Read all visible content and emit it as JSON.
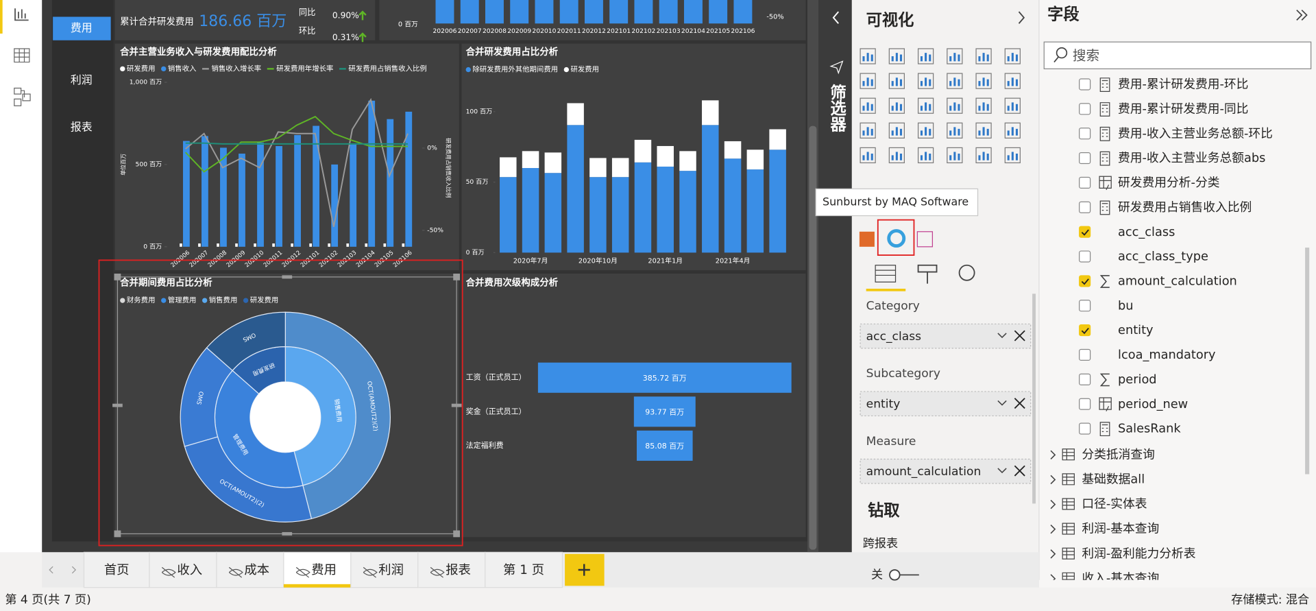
{
  "left_nav": {
    "pages": [
      "费用",
      "利润",
      "报表"
    ],
    "active": 0
  },
  "kpi": {
    "label": "累计合并研发费用",
    "value": "186.66 百万",
    "yoy_label": "同比",
    "yoy": "0.90%",
    "mom_label": "环比",
    "mom": "0.31%"
  },
  "top_chart": {
    "categories": [
      "202006",
      "202007",
      "202008",
      "202009",
      "202010",
      "202011",
      "202012",
      "202101",
      "202102",
      "202103",
      "202104",
      "202105",
      "202106"
    ],
    "y_label": "0 百万",
    "y2_label": "-50%"
  },
  "chart_data": [
    {
      "type": "combo",
      "title": "合并主营业务收入与研发费用配比分析",
      "categories": [
        "202006",
        "202007",
        "202008",
        "202009",
        "202010",
        "202011",
        "202012",
        "202101",
        "202102",
        "202103",
        "202104",
        "202105",
        "202106"
      ],
      "series": [
        {
          "name": "研发费用",
          "kind": "bar",
          "color": "#ffffff",
          "values": [
            20,
            20,
            20,
            20,
            20,
            20,
            20,
            20,
            20,
            20,
            20,
            20,
            20
          ]
        },
        {
          "name": "销售收入",
          "kind": "bar",
          "color": "#3a8ee6",
          "values": [
            643,
            673,
            602,
            566,
            633,
            612,
            679,
            735,
            500,
            622,
            888,
            776,
            821
          ]
        },
        {
          "name": "销售收入增长率",
          "kind": "line",
          "axis": "y2",
          "color": "#9a9a9a",
          "values": [
            -0.5,
            8.8,
            -11.9,
            -6.2,
            -11.9,
            9.8,
            8.8,
            8.8,
            -47.9,
            11.3,
            29.4,
            -17,
            8.8
          ]
        },
        {
          "name": "研发费用年增长率",
          "kind": "line",
          "axis": "y2",
          "color": "#5fb526",
          "values": [
            -2.6,
            -14.4,
            -6.7,
            3.6,
            3.6,
            6.2,
            13.9,
            19.1,
            8.8,
            4.6,
            1,
            1,
            1
          ]
        },
        {
          "name": "研发费用占销售收入比例",
          "kind": "line",
          "axis": "y2",
          "color": "#1f8f7a",
          "values": [
            3,
            3,
            2.5,
            2.5,
            2.5,
            2.5,
            2.5,
            2.5,
            2.5,
            2.5,
            2.5,
            2.5,
            2.5
          ]
        }
      ],
      "ylim": [
        0,
        1000
      ],
      "yticks": [
        {
          "value": 1000,
          "label": "1,000 百万"
        },
        {
          "value": 500,
          "label": "500 百万"
        },
        {
          "value": 0,
          "label": "0 百万"
        }
      ],
      "y2lim": [
        -60,
        40
      ],
      "y2ticks": [
        {
          "value": 0,
          "label": "0%"
        },
        {
          "value": -50,
          "label": "-50%"
        }
      ],
      "y_label": "单位百万",
      "y2_label": "研发费用占销售收入比例",
      "grid": false
    },
    {
      "type": "stacked",
      "title": "合并研发费用占比分析",
      "categories": [
        null,
        "2020年7月",
        null,
        null,
        "2020年10月",
        null,
        null,
        "2021年1月",
        null,
        null,
        "2021年4月",
        null,
        null
      ],
      "series": [
        {
          "name": "除研发费用外其他期间费用",
          "color": "#3a8ee6",
          "values": [
            53.6,
            60,
            56.5,
            90.5,
            53.6,
            53.6,
            64,
            61,
            58,
            90.5,
            66.7,
            59,
            73
          ]
        },
        {
          "name": "研发费用",
          "color": "#ffffff",
          "values": [
            14,
            12,
            14.5,
            15.5,
            13.5,
            13.5,
            16,
            14.6,
            14,
            17.5,
            12.3,
            14,
            14.5
          ]
        }
      ],
      "ylim": [
        0,
        110
      ],
      "yticks": [
        {
          "value": 100,
          "label": "100 百万"
        },
        {
          "value": 50,
          "label": "50 百万"
        },
        {
          "value": 0,
          "label": "0 百万"
        }
      ],
      "grid": false
    },
    {
      "type": "sunburst",
      "title": "合并期间费用占比分析",
      "legend": [
        {
          "name": "财务费用",
          "color": "#d9d9d9"
        },
        {
          "name": "管理费用",
          "color": "#3a8ee6"
        },
        {
          "name": "销售费用",
          "color": "#5aaaf0"
        },
        {
          "name": "研发费用",
          "color": "#2c66b0"
        }
      ],
      "inner": {
        "labels": [
          "销售费用",
          "管理费用",
          "研发费用"
        ],
        "values": [
          46,
          40.5,
          13.5
        ],
        "colors": [
          "#5aa7ef",
          "#3a82dc",
          "#2b63ad"
        ]
      },
      "outer": {
        "labels": [
          "OCT(AMOUT2)(2)",
          "OCT(AMOUT2)(2)",
          "OMS",
          "OMS"
        ],
        "values": [
          46,
          24.5,
          16,
          13.5
        ],
        "colors": [
          "#4f8ccb",
          "#3877cf",
          "#3a7bd3",
          "#2a5a8f"
        ]
      }
    },
    {
      "type": "funnel",
      "title": "合并费用次级构成分析",
      "categories": [
        "工资（正式员工）",
        "奖金（正式员工）",
        "法定福利费"
      ],
      "values": [
        385.72,
        93.77,
        85.08
      ],
      "value_labels": [
        "385.72 百万",
        "93.77 百万",
        "85.08 百万"
      ],
      "color": "#3a8ee6"
    }
  ],
  "filters_label": "筛选器",
  "visualizations": {
    "title": "可视化",
    "tooltip": "Sunburst by MAQ Software",
    "wells": [
      {
        "label": "Category",
        "field": "acc_class"
      },
      {
        "label": "Subcategory",
        "field": "entity"
      },
      {
        "label": "Measure",
        "field": "amount_calculation"
      }
    ],
    "drill": "钻取",
    "cross_report": "跨报表",
    "toggle": "关"
  },
  "fields": {
    "title": "字段",
    "search_placeholder": "搜索",
    "items": [
      {
        "name": "费用-累计研发费用-环比",
        "kind": "measure",
        "checked": false
      },
      {
        "name": "费用-累计研发费用-同比",
        "kind": "measure",
        "checked": false
      },
      {
        "name": "费用-收入主营业务总额-环比",
        "kind": "measure",
        "checked": false
      },
      {
        "name": "费用-收入主营业务总额abs",
        "kind": "measure",
        "checked": false
      },
      {
        "name": "研发费用分析-分类",
        "kind": "calc",
        "checked": false
      },
      {
        "name": "研发费用占销售收入比例",
        "kind": "measure",
        "checked": false
      },
      {
        "name": "acc_class",
        "kind": "column",
        "checked": true
      },
      {
        "name": "acc_class_type",
        "kind": "column",
        "checked": false
      },
      {
        "name": "amount_calculation",
        "kind": "sum",
        "checked": true
      },
      {
        "name": "bu",
        "kind": "column",
        "checked": false
      },
      {
        "name": "entity",
        "kind": "column",
        "checked": true
      },
      {
        "name": "lcoa_mandatory",
        "kind": "column",
        "checked": false
      },
      {
        "name": "period",
        "kind": "sum",
        "checked": false
      },
      {
        "name": "period_new",
        "kind": "calc",
        "checked": false
      },
      {
        "name": "SalesRank",
        "kind": "measure",
        "checked": false
      }
    ],
    "tables": [
      "分类抵消查询",
      "基础数据all",
      "口径-实体表",
      "利润-基本查询",
      "利润-盈利能力分析表",
      "收入-基本查询"
    ]
  },
  "tabs": [
    {
      "name": "首页",
      "hidden": false
    },
    {
      "name": "收入",
      "hidden": true
    },
    {
      "name": "成本",
      "hidden": true
    },
    {
      "name": "费用",
      "hidden": true
    },
    {
      "name": "利润",
      "hidden": true
    },
    {
      "name": "报表",
      "hidden": true
    },
    {
      "name": "第 1 页",
      "hidden": false
    }
  ],
  "active_tab": 3,
  "status": {
    "page": "第 4 页(共 7 页)",
    "storage": "存储模式: 混合"
  }
}
